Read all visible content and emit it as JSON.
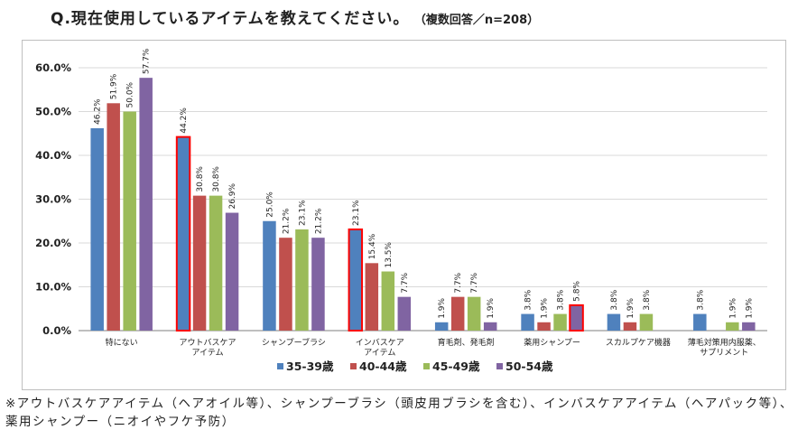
{
  "page": {
    "title_main": "Q.現在使用しているアイテムを教えてください。",
    "title_sub": "（複数回答／n=208）",
    "footnote": "※アウトバスケアアイテム（ヘアオイル等）、シャンプーブラシ（頭皮用ブラシを含む）、インバスケアアイテム（ヘアパック等）、薬用シャンプー（ニオイやフケ予防）"
  },
  "chart_data": {
    "type": "bar",
    "categories": [
      [
        "特にない"
      ],
      [
        "アウトバスケア",
        "アイテム"
      ],
      [
        "シャンプーブラシ"
      ],
      [
        "インバスケア",
        "アイテム"
      ],
      [
        "育毛剤、発毛剤"
      ],
      [
        "薬用シャンプー"
      ],
      [
        "スカルプケア機器"
      ],
      [
        "薄毛対策用内服薬、",
        "サプリメント"
      ]
    ],
    "series": [
      {
        "name": "35-39歳",
        "color": "#4f81bd",
        "values": [
          46.2,
          44.2,
          25.0,
          23.1,
          1.9,
          3.8,
          3.8,
          3.8
        ],
        "labels": [
          "46.2%",
          "44.2%",
          "25.0%",
          "23.1%",
          "1.9%",
          "3.8%",
          "3.8%",
          "3.8%"
        ]
      },
      {
        "name": "40-44歳",
        "color": "#c0504d",
        "values": [
          51.9,
          30.8,
          21.2,
          15.4,
          7.7,
          1.9,
          1.9,
          0
        ],
        "labels": [
          "51.9%",
          "30.8%",
          "21.2%",
          "15.4%",
          "7.7%",
          "1.9%",
          "1.9%",
          ""
        ]
      },
      {
        "name": "45-49歳",
        "color": "#9bbb59",
        "values": [
          50.0,
          30.8,
          23.1,
          13.5,
          7.7,
          3.8,
          3.8,
          1.9
        ],
        "labels": [
          "50.0%",
          "30.8%",
          "23.1%",
          "13.5%",
          "7.7%",
          "3.8%",
          "3.8%",
          "1.9%"
        ]
      },
      {
        "name": "50-54歳",
        "color": "#8064a2",
        "values": [
          57.7,
          26.9,
          21.2,
          7.7,
          1.9,
          5.8,
          0,
          1.9
        ],
        "labels": [
          "57.7%",
          "26.9%",
          "21.2%",
          "7.7%",
          "1.9%",
          "5.8%",
          "",
          "1.9%"
        ]
      }
    ],
    "highlighted": [
      {
        "series": 0,
        "category": 1
      },
      {
        "series": 0,
        "category": 3
      },
      {
        "series": 3,
        "category": 5
      }
    ],
    "highlight_color": "#ff0000",
    "yticks": [
      "0.0%",
      "10.0%",
      "20.0%",
      "30.0%",
      "40.0%",
      "50.0%",
      "60.0%"
    ],
    "ylim": [
      0,
      60
    ],
    "ystep": 10,
    "grid": true,
    "legend": "bottom"
  }
}
